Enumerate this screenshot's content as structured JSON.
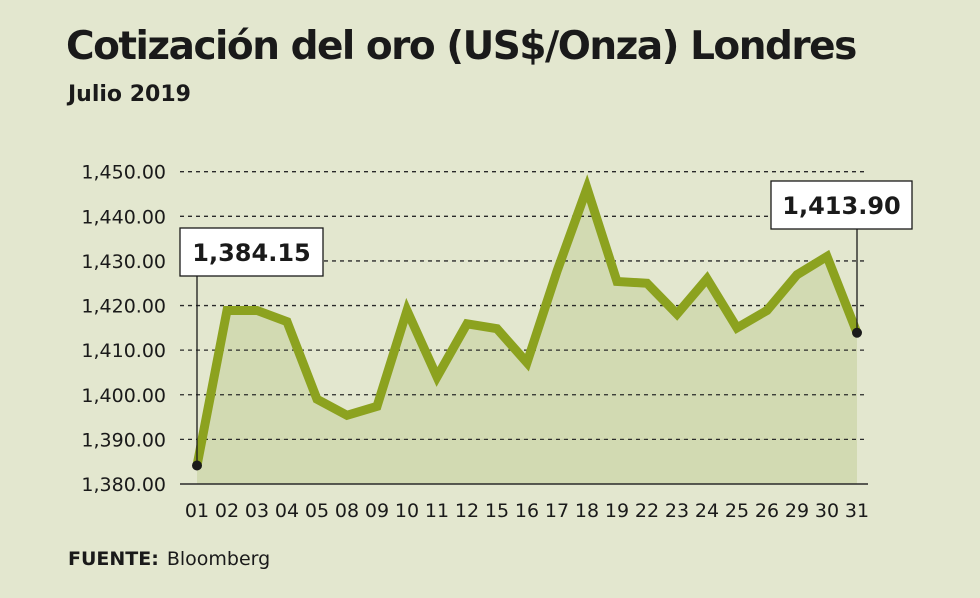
{
  "title": "Cotización del oro (US$/Onza) Londres",
  "subtitle": "Julio 2019",
  "source": {
    "label": "FUENTE:",
    "value": "Bloomberg"
  },
  "colors": {
    "background": "#e3e7cf",
    "line": "#8ca21f",
    "area": "#d2dab2",
    "text": "#1a1a1a"
  },
  "chart_data": {
    "type": "area",
    "title": "Cotización del oro (US$/Onza) Londres",
    "subtitle": "Julio 2019",
    "xlabel": "",
    "ylabel": "",
    "ylim": [
      1380,
      1450
    ],
    "yticks": [
      "1,380.00",
      "1,390.00",
      "1,400.00",
      "1,410.00",
      "1,420.00",
      "1,430.00",
      "1,440.00",
      "1,450.00"
    ],
    "ytick_values": [
      1380,
      1390,
      1400,
      1410,
      1420,
      1430,
      1440,
      1450
    ],
    "grid": true,
    "categories": [
      "01",
      "02",
      "03",
      "04",
      "05",
      "08",
      "09",
      "10",
      "11",
      "12",
      "15",
      "16",
      "17",
      "18",
      "19",
      "22",
      "23",
      "24",
      "25",
      "26",
      "29",
      "30",
      "31"
    ],
    "values": [
      1384.15,
      1418.9,
      1418.9,
      1416.4,
      1399.0,
      1395.4,
      1397.4,
      1418.9,
      1404.0,
      1415.9,
      1414.8,
      1407.2,
      1427.7,
      1446.3,
      1425.4,
      1425.0,
      1418.1,
      1426.0,
      1415.0,
      1418.9,
      1426.9,
      1431.0,
      1413.9
    ],
    "annotations": [
      {
        "category": "01",
        "text": "1,384.15"
      },
      {
        "category": "31",
        "text": "1,413.90"
      }
    ]
  }
}
